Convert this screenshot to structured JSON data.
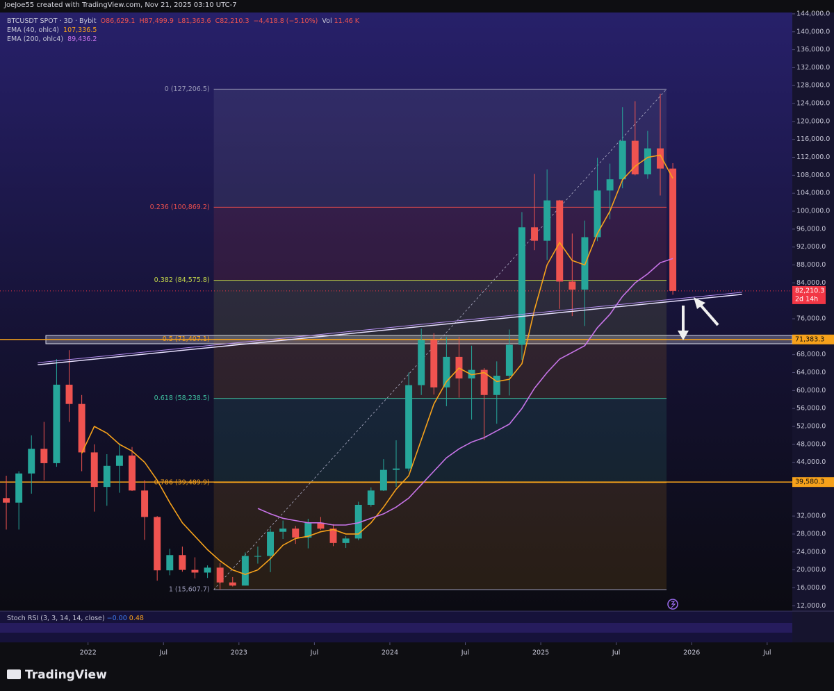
{
  "header": "JoeJoe55 created with TradingView.com, Nov 21, 2025 03:10 UTC-7",
  "legend": {
    "symbol": "BTCUSDT SPOT · 3D · Bybit",
    "open": "O86,629.1",
    "high": "H87,499.9",
    "low": "L81,363.6",
    "close": "C82,210.3",
    "change": "−4,418.8 (−5.10%)",
    "volume_label": "Vol",
    "volume": "11.46 K",
    "ema_values": [
      "107,336.5",
      "89,436.2"
    ]
  },
  "indicator": {
    "name": "Stoch RSI (3, 3, 14, 14, close)",
    "k": "−0.00",
    "d": "0.48"
  },
  "brand": "TradingView",
  "chart_data": {
    "type": "candlestick",
    "x": [
      "2021-06",
      "2021-07",
      "2021-08",
      "2021-09",
      "2021-10",
      "2021-11",
      "2021-12",
      "2022-01",
      "2022-02",
      "2022-03",
      "2022-04",
      "2022-05",
      "2022-06",
      "2022-07",
      "2022-08",
      "2022-09",
      "2022-10",
      "2022-11",
      "2022-12",
      "2023-01",
      "2023-02",
      "2023-03",
      "2023-04",
      "2023-05",
      "2023-06",
      "2023-07",
      "2023-08",
      "2023-09",
      "2023-10",
      "2023-11",
      "2023-12",
      "2024-01",
      "2024-02",
      "2024-03",
      "2024-04",
      "2024-05",
      "2024-06",
      "2024-07",
      "2024-08",
      "2024-09",
      "2024-10",
      "2024-11",
      "2024-12",
      "2025-01",
      "2025-02",
      "2025-03",
      "2025-04",
      "2025-05",
      "2025-06",
      "2025-07",
      "2025-08",
      "2025-09",
      "2025-10",
      "2025-11"
    ],
    "open": [
      36000,
      35000,
      41500,
      47000,
      43800,
      61300,
      57000,
      46200,
      38500,
      43200,
      45500,
      37700,
      31800,
      19900,
      23300,
      20000,
      19400,
      20500,
      17200,
      16500,
      23100,
      23100,
      28500,
      29200,
      27200,
      30500,
      29200,
      26000,
      27000,
      34500,
      37700,
      42300,
      42600,
      61200,
      71300,
      60700,
      67500,
      62700,
      64600,
      59000,
      63300,
      70200,
      96400,
      93400,
      102400,
      84300,
      82500,
      94200,
      104600,
      107100,
      115700,
      108200,
      114000,
      109500
    ],
    "high": [
      41000,
      42000,
      50000,
      53000,
      67000,
      69000,
      59000,
      48000,
      45800,
      48200,
      47400,
      40000,
      32000,
      24700,
      25200,
      22800,
      21000,
      21500,
      18400,
      23900,
      25200,
      29200,
      31000,
      29800,
      31400,
      31800,
      30200,
      27500,
      35200,
      38400,
      44700,
      48900,
      64000,
      73800,
      72800,
      72000,
      72000,
      70000,
      65000,
      66500,
      73600,
      99800,
      108300,
      109300,
      102500,
      95000,
      97900,
      111900,
      110600,
      123200,
      124500,
      117900,
      126200,
      110700
    ],
    "low": [
      29000,
      29000,
      37000,
      40000,
      43000,
      53000,
      42000,
      33000,
      34300,
      37200,
      37600,
      26700,
      17600,
      18800,
      19600,
      18100,
      18200,
      15600,
      16300,
      16500,
      21400,
      19500,
      26900,
      25800,
      24800,
      28900,
      25300,
      24900,
      26600,
      34100,
      37600,
      38500,
      42000,
      59000,
      59100,
      56500,
      58400,
      53500,
      49000,
      52600,
      58900,
      66800,
      91300,
      89100,
      78200,
      76600,
      74400,
      93300,
      98200,
      105100,
      108000,
      107200,
      103500,
      81363.6
    ],
    "close": [
      35000,
      41500,
      47000,
      43800,
      61300,
      57000,
      46200,
      38500,
      43200,
      45500,
      37700,
      31800,
      19900,
      23300,
      20000,
      19400,
      20500,
      17200,
      16500,
      23100,
      23100,
      28500,
      29200,
      27200,
      30500,
      29200,
      26000,
      27000,
      34500,
      37700,
      42300,
      42600,
      61200,
      71300,
      60700,
      67500,
      62700,
      64600,
      59000,
      63300,
      70200,
      96400,
      93400,
      102400,
      84300,
      82500,
      94200,
      104600,
      107100,
      115700,
      108200,
      114000,
      109500,
      82210.3
    ],
    "up_color": "#26a69a",
    "down_color": "#ef5350",
    "series": [
      {
        "name": "EMA (40, ohlc4)",
        "color": "#f7a21b",
        "values": [
          null,
          null,
          null,
          null,
          null,
          null,
          46000,
          52000,
          50500,
          48000,
          46500,
          44000,
          40000,
          35000,
          30500,
          27500,
          24500,
          22000,
          20000,
          19000,
          20000,
          22500,
          25500,
          27000,
          27500,
          28500,
          29000,
          28000,
          28000,
          30500,
          34000,
          38000,
          41000,
          49000,
          57000,
          62000,
          65000,
          63500,
          64000,
          62000,
          62500,
          66000,
          78000,
          88000,
          93000,
          89000,
          88000,
          95000,
          100000,
          107000,
          110000,
          112000,
          112500,
          107336.5
        ]
      },
      {
        "name": "EMA (200, ohlc4)",
        "color": "#c774e8",
        "values": [
          null,
          null,
          null,
          null,
          null,
          null,
          null,
          null,
          null,
          null,
          null,
          null,
          null,
          null,
          null,
          null,
          null,
          null,
          null,
          null,
          33700,
          32500,
          31500,
          31000,
          30500,
          30500,
          30000,
          30000,
          30500,
          31500,
          32500,
          34000,
          36000,
          39000,
          42000,
          45000,
          47000,
          48500,
          49500,
          51000,
          52500,
          56000,
          60500,
          64000,
          67000,
          68500,
          70000,
          74000,
          77000,
          81000,
          84000,
          86000,
          88500,
          89436.2
        ]
      }
    ],
    "xlim": [
      "2021-06",
      "2026-09"
    ],
    "xticks": [
      {
        "value": "2022-01",
        "label": "2022"
      },
      {
        "value": "2022-07",
        "label": "Jul"
      },
      {
        "value": "2023-01",
        "label": "2023"
      },
      {
        "value": "2023-07",
        "label": "Jul"
      },
      {
        "value": "2024-01",
        "label": "2024"
      },
      {
        "value": "2024-07",
        "label": "Jul"
      },
      {
        "value": "2025-01",
        "label": "2025"
      },
      {
        "value": "2025-07",
        "label": "Jul"
      },
      {
        "value": "2026-01",
        "label": "2026"
      },
      {
        "value": "2026-07",
        "label": "Jul"
      }
    ],
    "ylim": [
      10800,
      144300
    ],
    "yticks": [
      {
        "value": 12000,
        "label": "12,000.0"
      },
      {
        "value": 16000,
        "label": "16,000.0"
      },
      {
        "value": 20000,
        "label": "20,000.0"
      },
      {
        "value": 24000,
        "label": "24,000.0"
      },
      {
        "value": 28000,
        "label": "28,000.0"
      },
      {
        "value": 32000,
        "label": "32,000.0"
      },
      {
        "value": 44000,
        "label": "44,000.0"
      },
      {
        "value": 48000,
        "label": "48,000.0"
      },
      {
        "value": 52000,
        "label": "52,000.0"
      },
      {
        "value": 56000,
        "label": "56,000.0"
      },
      {
        "value": 60000,
        "label": "60,000.0"
      },
      {
        "value": 64000,
        "label": "64,000.0"
      },
      {
        "value": 68000,
        "label": "68,000.0"
      },
      {
        "value": 76000,
        "label": "76,000.0"
      },
      {
        "value": 84000,
        "label": "84,000.0"
      },
      {
        "value": 88000,
        "label": "88,000.0"
      },
      {
        "value": 92000,
        "label": "92,000.0"
      },
      {
        "value": 96000,
        "label": "96,000.0"
      },
      {
        "value": 100000,
        "label": "100,000.0"
      },
      {
        "value": 104000,
        "label": "104,000.0"
      },
      {
        "value": 108000,
        "label": "108,000.0"
      },
      {
        "value": 112000,
        "label": "112,000.0"
      },
      {
        "value": 116000,
        "label": "116,000.0"
      },
      {
        "value": 120000,
        "label": "120,000.0"
      },
      {
        "value": 124000,
        "label": "124,000.0"
      },
      {
        "value": 128000,
        "label": "128,000.0"
      },
      {
        "value": 132000,
        "label": "132,000.0"
      },
      {
        "value": 136000,
        "label": "136,000.0"
      },
      {
        "value": 140000,
        "label": "140,000.0"
      },
      {
        "value": 144000,
        "label": "144,000.0"
      }
    ],
    "fib_x": [
      "2022-11",
      "2025-10"
    ],
    "fib_levels": [
      {
        "value": 127206.5,
        "label": "0 (127,206.5)",
        "color": "#9a9ab8"
      },
      {
        "value": 100869.2,
        "label": "0.236 (100,869.2)",
        "color": "#e84e4e"
      },
      {
        "value": 84575.8,
        "label": "0.382 (84,575.8)",
        "color": "#c5d84a"
      },
      {
        "value": 71407.1,
        "label": "0.5 (71,407.1)",
        "color": "#f7a21b"
      },
      {
        "value": 58238.5,
        "label": "0.618 (58,238.5)",
        "color": "#3fbf9f"
      },
      {
        "value": 39489.9,
        "label": "0.786 (39,489.9)",
        "color": "#f7a21b"
      },
      {
        "value": 15607.7,
        "label": "1 (15,607.7)",
        "color": "#9a9ab8"
      }
    ],
    "trendline": {
      "x": [
        "2021-09",
        "2026-05"
      ],
      "values": [
        66200,
        81900
      ],
      "color": "#e8e0ff"
    },
    "price_lines": [
      {
        "value": 71383.3,
        "label": "71,383.3",
        "color": "#f7a21b"
      },
      {
        "value": 39580.3,
        "label": "39,580.3",
        "color": "#f7a21b"
      }
    ],
    "last_price": {
      "value": 82210.3,
      "label": "82,210.3",
      "countdown": "2d 14h",
      "color": "#f23645"
    }
  }
}
